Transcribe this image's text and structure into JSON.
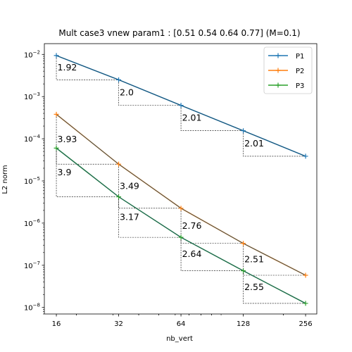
{
  "chart_data": {
    "type": "line",
    "title": "Mult case3 vnew param1 : [0.51 0.54 0.64 0.77] (M=0.1)",
    "xlabel": "nb_vert",
    "ylabel": "L2 norm",
    "xscale": "log",
    "yscale": "log",
    "xlim": [
      14.0,
      290.0
    ],
    "ylim": [
      7e-09,
      0.018
    ],
    "xticks": [
      16,
      32,
      64,
      128,
      256
    ],
    "xtick_labels": [
      "16",
      "32",
      "64",
      "128",
      "256"
    ],
    "yticks": [
      1e-08,
      1e-07,
      1e-06,
      1e-05,
      0.0001,
      0.001,
      0.01
    ],
    "ytick_bases": [
      "10",
      "10",
      "10",
      "10",
      "10",
      "10",
      "10"
    ],
    "ytick_exponents": [
      "−8",
      "−7",
      "−6",
      "−5",
      "−4",
      "−3",
      "−2"
    ],
    "grid": false,
    "legend_position": "top-right",
    "x": [
      16,
      32,
      64,
      128,
      256
    ],
    "series": [
      {
        "name": "P1",
        "color": "#1f77b4",
        "y": [
          0.0094,
          0.0025,
          0.00062,
          0.000155,
          3.85e-05
        ],
        "slopes": [
          "1.92",
          "2.0",
          "2.01",
          "2.01"
        ]
      },
      {
        "name": "P2",
        "color": "#ff7f0e",
        "y": [
          0.00038,
          2.5e-05,
          2.25e-06,
          3.3e-07,
          5.8e-08
        ],
        "slopes": [
          "3.93",
          "3.49",
          "2.76",
          "2.51"
        ]
      },
      {
        "name": "P3",
        "color": "#2ca02c",
        "y": [
          6e-05,
          4.2e-06,
          4.6e-07,
          7.4e-08,
          1.25e-08
        ],
        "slopes": [
          "3.9",
          "3.17",
          "2.64",
          "2.55"
        ]
      }
    ],
    "overlay_color": "#1a4d66"
  }
}
